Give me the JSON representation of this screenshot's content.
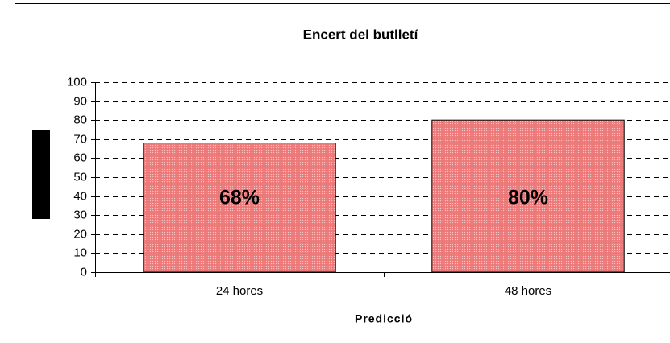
{
  "chart_data": {
    "type": "bar",
    "title": "Encert del butlletí",
    "x_label": "Predicció",
    "categories": [
      "24 hores",
      "48 hores"
    ],
    "values": [
      68,
      80
    ],
    "value_labels": [
      "68%",
      "80%"
    ],
    "color": "#f08080",
    "ylim": [
      0,
      100
    ],
    "yticks": [
      0,
      10,
      20,
      30,
      40,
      50,
      60,
      70,
      80,
      90,
      100
    ],
    "grid": true
  }
}
